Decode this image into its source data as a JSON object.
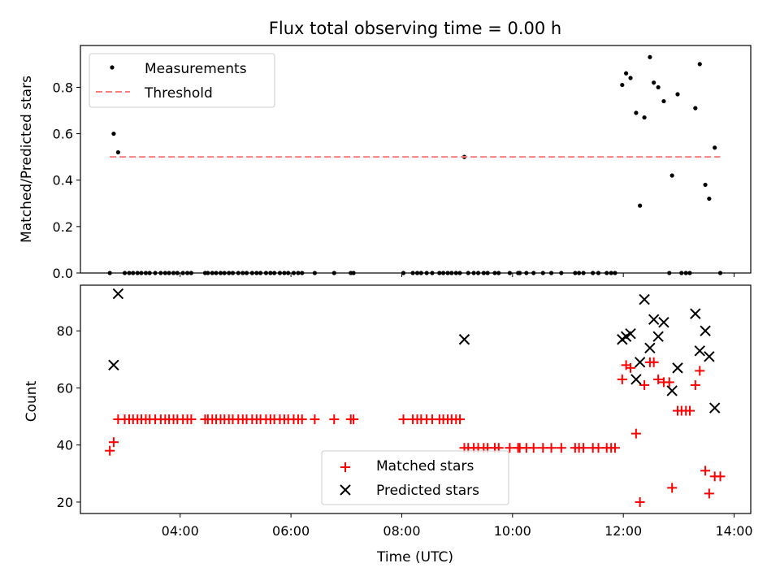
{
  "title": "Flux total observing time = 0.00 h",
  "chart_data": [
    {
      "type": "scatter",
      "ylabel": "Matched/Predicted stars",
      "xlim": [
        2.2,
        14.3
      ],
      "ylim": [
        0,
        0.98
      ],
      "yticks": [
        0.0,
        0.2,
        0.4,
        0.6,
        0.8
      ],
      "ytick_labels": [
        "0.0",
        "0.2",
        "0.4",
        "0.6",
        "0.8"
      ],
      "xticks": [
        4,
        6,
        8,
        10,
        12,
        14
      ],
      "grid": false,
      "legend_position": "upper-left",
      "legend": [
        {
          "label": "Measurements",
          "marker": "dot"
        },
        {
          "label": "Threshold",
          "marker": "dashed-line"
        }
      ],
      "series": [
        {
          "name": "Measurements",
          "color": "#000000",
          "marker": "dot",
          "x": [
            2.73,
            2.8,
            2.88,
            9.13,
            11.98,
            12.05,
            12.13,
            12.23,
            12.3,
            12.38,
            12.48,
            12.55,
            12.63,
            12.73,
            12.88,
            12.98,
            13.3,
            13.38,
            13.48,
            13.55,
            13.65
          ],
          "y": [
            0.0,
            0.6,
            0.52,
            0.5,
            0.81,
            0.86,
            0.84,
            0.69,
            0.29,
            0.67,
            0.93,
            0.82,
            0.8,
            0.74,
            0.42,
            0.77,
            0.71,
            0.9,
            0.38,
            0.32,
            0.54
          ]
        },
        {
          "name": "Measurements (zero)",
          "color": "#000000",
          "marker": "dot",
          "x": [
            3.0,
            3.08,
            3.15,
            3.23,
            3.3,
            3.38,
            3.45,
            3.55,
            3.65,
            3.73,
            3.8,
            3.88,
            3.95,
            4.05,
            4.13,
            4.2,
            4.45,
            4.5,
            4.58,
            4.65,
            4.73,
            4.8,
            4.88,
            4.95,
            5.05,
            5.13,
            5.2,
            5.3,
            5.38,
            5.45,
            5.55,
            5.63,
            5.7,
            5.8,
            5.88,
            5.95,
            6.05,
            6.13,
            6.2,
            6.43,
            6.78,
            7.08,
            7.13,
            8.03,
            8.2,
            8.28,
            8.35,
            8.45,
            8.55,
            8.68,
            8.75,
            8.83,
            8.9,
            8.98,
            9.05,
            9.2,
            9.3,
            9.38,
            9.48,
            9.55,
            9.68,
            9.75,
            9.95,
            10.1,
            10.13,
            10.25,
            10.38,
            10.55,
            10.7,
            10.88,
            11.13,
            11.2,
            11.28,
            11.45,
            11.55,
            11.7,
            11.78,
            11.85,
            12.83,
            13.05,
            13.13,
            13.2,
            13.75
          ],
          "y": 0.0
        },
        {
          "name": "Threshold",
          "type": "line",
          "color": "#ff7f7f",
          "style": "dashed",
          "x": [
            2.73,
            13.75
          ],
          "y": [
            0.5,
            0.5
          ]
        }
      ]
    },
    {
      "type": "scatter",
      "xlabel": "Time (UTC)",
      "ylabel": "Count",
      "xlim": [
        2.2,
        14.3
      ],
      "ylim": [
        16,
        96
      ],
      "yticks": [
        20,
        40,
        60,
        80
      ],
      "ytick_labels": [
        "20",
        "40",
        "60",
        "80"
      ],
      "xticks": [
        4,
        6,
        8,
        10,
        12,
        14
      ],
      "xtick_labels": [
        "04:00",
        "06:00",
        "08:00",
        "10:00",
        "12:00",
        "14:00"
      ],
      "grid": false,
      "legend_position": "lower-center",
      "legend": [
        {
          "label": "Matched stars",
          "marker": "plus",
          "color": "#ff0000"
        },
        {
          "label": "Predicted stars",
          "marker": "x",
          "color": "#000000"
        }
      ],
      "series": [
        {
          "name": "Matched stars",
          "color": "#ff0000",
          "marker": "plus",
          "x": [
            2.73,
            2.8,
            2.88,
            3.0,
            3.08,
            3.15,
            3.23,
            3.3,
            3.38,
            3.45,
            3.55,
            3.65,
            3.73,
            3.8,
            3.88,
            3.95,
            4.05,
            4.13,
            4.2,
            4.45,
            4.5,
            4.58,
            4.65,
            4.73,
            4.8,
            4.88,
            4.95,
            5.05,
            5.13,
            5.2,
            5.3,
            5.38,
            5.45,
            5.55,
            5.63,
            5.7,
            5.8,
            5.88,
            5.95,
            6.05,
            6.13,
            6.2,
            6.43,
            6.78,
            7.08,
            7.13,
            8.03,
            8.2,
            8.28,
            8.35,
            8.45,
            8.55,
            8.68,
            8.75,
            8.83,
            8.9,
            8.98,
            9.05,
            9.13,
            9.2,
            9.3,
            9.38,
            9.48,
            9.55,
            9.68,
            9.75,
            9.95,
            10.1,
            10.13,
            10.25,
            10.38,
            10.55,
            10.7,
            10.88,
            11.13,
            11.2,
            11.28,
            11.45,
            11.55,
            11.7,
            11.78,
            11.85,
            11.98,
            12.05,
            12.13,
            12.23,
            12.3,
            12.38,
            12.48,
            12.55,
            12.63,
            12.73,
            12.83,
            12.88,
            12.98,
            13.05,
            13.13,
            13.2,
            13.3,
            13.38,
            13.48,
            13.55,
            13.65,
            13.75
          ],
          "y": [
            38,
            41,
            49,
            49,
            49,
            49,
            49,
            49,
            49,
            49,
            49,
            49,
            49,
            49,
            49,
            49,
            49,
            49,
            49,
            49,
            49,
            49,
            49,
            49,
            49,
            49,
            49,
            49,
            49,
            49,
            49,
            49,
            49,
            49,
            49,
            49,
            49,
            49,
            49,
            49,
            49,
            49,
            49,
            49,
            49,
            49,
            49,
            49,
            49,
            49,
            49,
            49,
            49,
            49,
            49,
            49,
            49,
            49,
            39,
            39,
            39,
            39,
            39,
            39,
            39,
            39,
            39,
            39,
            39,
            39,
            39,
            39,
            39,
            39,
            39,
            39,
            39,
            39,
            39,
            39,
            39,
            39,
            63,
            68,
            67,
            44,
            20,
            61,
            69,
            69,
            63,
            62,
            62,
            25,
            52,
            52,
            52,
            52,
            61,
            66,
            31,
            23,
            29,
            29
          ]
        },
        {
          "name": "Predicted stars",
          "color": "#000000",
          "marker": "x",
          "x": [
            2.8,
            2.88,
            9.13,
            11.98,
            12.05,
            12.13,
            12.23,
            12.3,
            12.38,
            12.48,
            12.55,
            12.63,
            12.73,
            12.88,
            12.98,
            13.3,
            13.38,
            13.48,
            13.55,
            13.65
          ],
          "y": [
            68,
            93,
            77,
            77,
            78,
            79,
            63,
            69,
            91,
            74,
            84,
            78,
            83,
            59,
            67,
            86,
            73,
            80,
            71,
            53
          ]
        }
      ]
    }
  ]
}
